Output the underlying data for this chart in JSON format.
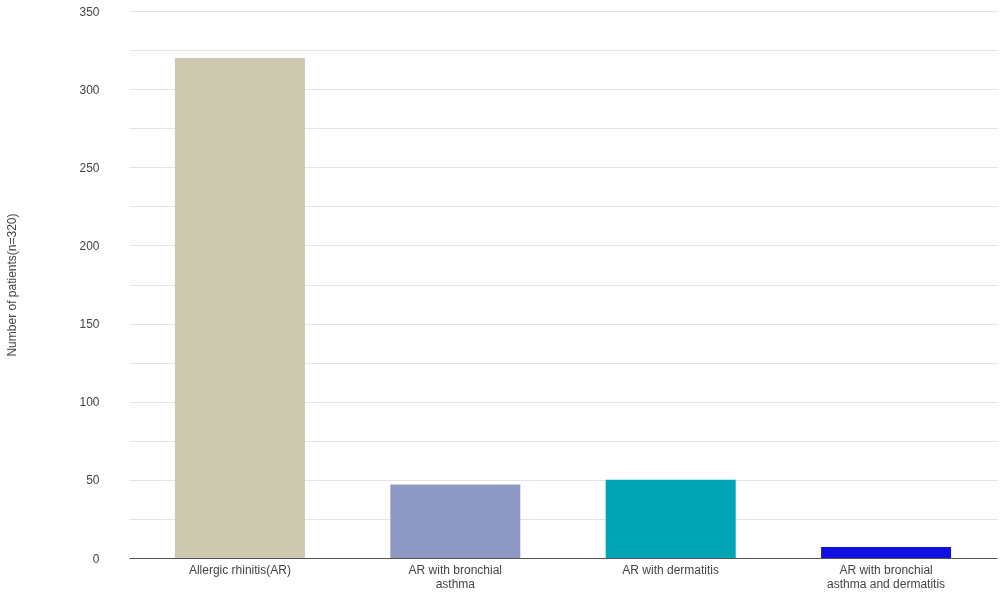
{
  "chart_data": {
    "type": "bar",
    "ylabel": "Number of patients(n=320)",
    "categories": [
      "Allergic rhinitis(AR)",
      "AR with bronchial asthma",
      "AR with dermatitis",
      "AR with bronchial asthma and dermatitis"
    ],
    "values": [
      320,
      47,
      50,
      7
    ],
    "colors": [
      "#cdc9ae",
      "#8e9ac4",
      "#00a4b4",
      "#1010e0"
    ],
    "ylim": [
      0,
      350
    ],
    "yticks": [
      0,
      {
        "value": 25,
        "label": null
      },
      50,
      {
        "value": 75,
        "label": null
      },
      100,
      {
        "value": 125,
        "label": null
      },
      150,
      {
        "value": 175,
        "label": null
      },
      200,
      {
        "value": 225,
        "label": null
      },
      250,
      {
        "value": 275,
        "label": null
      },
      300,
      {
        "value": 325,
        "label": null
      },
      350
    ],
    "grid": "y"
  }
}
